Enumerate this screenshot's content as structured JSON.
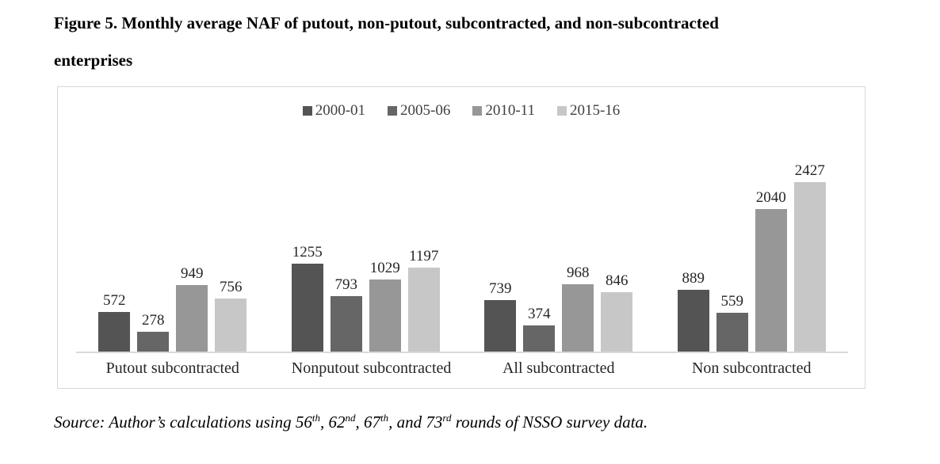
{
  "title": {
    "line1": "Figure 5. Monthly average NAF of putout, non-putout, subcontracted, and non-subcontracted",
    "line2": "enterprises"
  },
  "chart_data": {
    "type": "bar",
    "title": "Figure 5. Monthly average NAF of putout, non-putout, subcontracted, and non-subcontracted enterprises",
    "categories": [
      "Putout subcontracted",
      "Nonputout subcontracted",
      "All subcontracted",
      "Non subcontracted"
    ],
    "series": [
      {
        "name": "2000-01",
        "color": "#545454",
        "values": [
          572,
          1255,
          739,
          889
        ]
      },
      {
        "name": "2005-06",
        "color": "#666666",
        "values": [
          278,
          793,
          374,
          559
        ]
      },
      {
        "name": "2010-11",
        "color": "#979797",
        "values": [
          949,
          1029,
          968,
          2040
        ]
      },
      {
        "name": "2015-16",
        "color": "#c7c7c7",
        "values": [
          756,
          1197,
          846,
          2427
        ]
      }
    ],
    "data_labels": true,
    "legend_position": "top-center",
    "grid": false,
    "xlabel": "",
    "ylabel": "",
    "axis_line_color": "#d9d9d9",
    "panel_border_color": "#d8d8d8"
  },
  "source_note": {
    "segments": [
      {
        "text": "Source: Author’s calculations using 56"
      },
      {
        "text": "th",
        "sup": true
      },
      {
        "text": ", 62"
      },
      {
        "text": "nd",
        "sup": true
      },
      {
        "text": ", 67"
      },
      {
        "text": "th",
        "sup": true
      },
      {
        "text": ", and 73"
      },
      {
        "text": "rd",
        "sup": true
      },
      {
        "text": " rounds of NSSO survey data."
      }
    ]
  }
}
